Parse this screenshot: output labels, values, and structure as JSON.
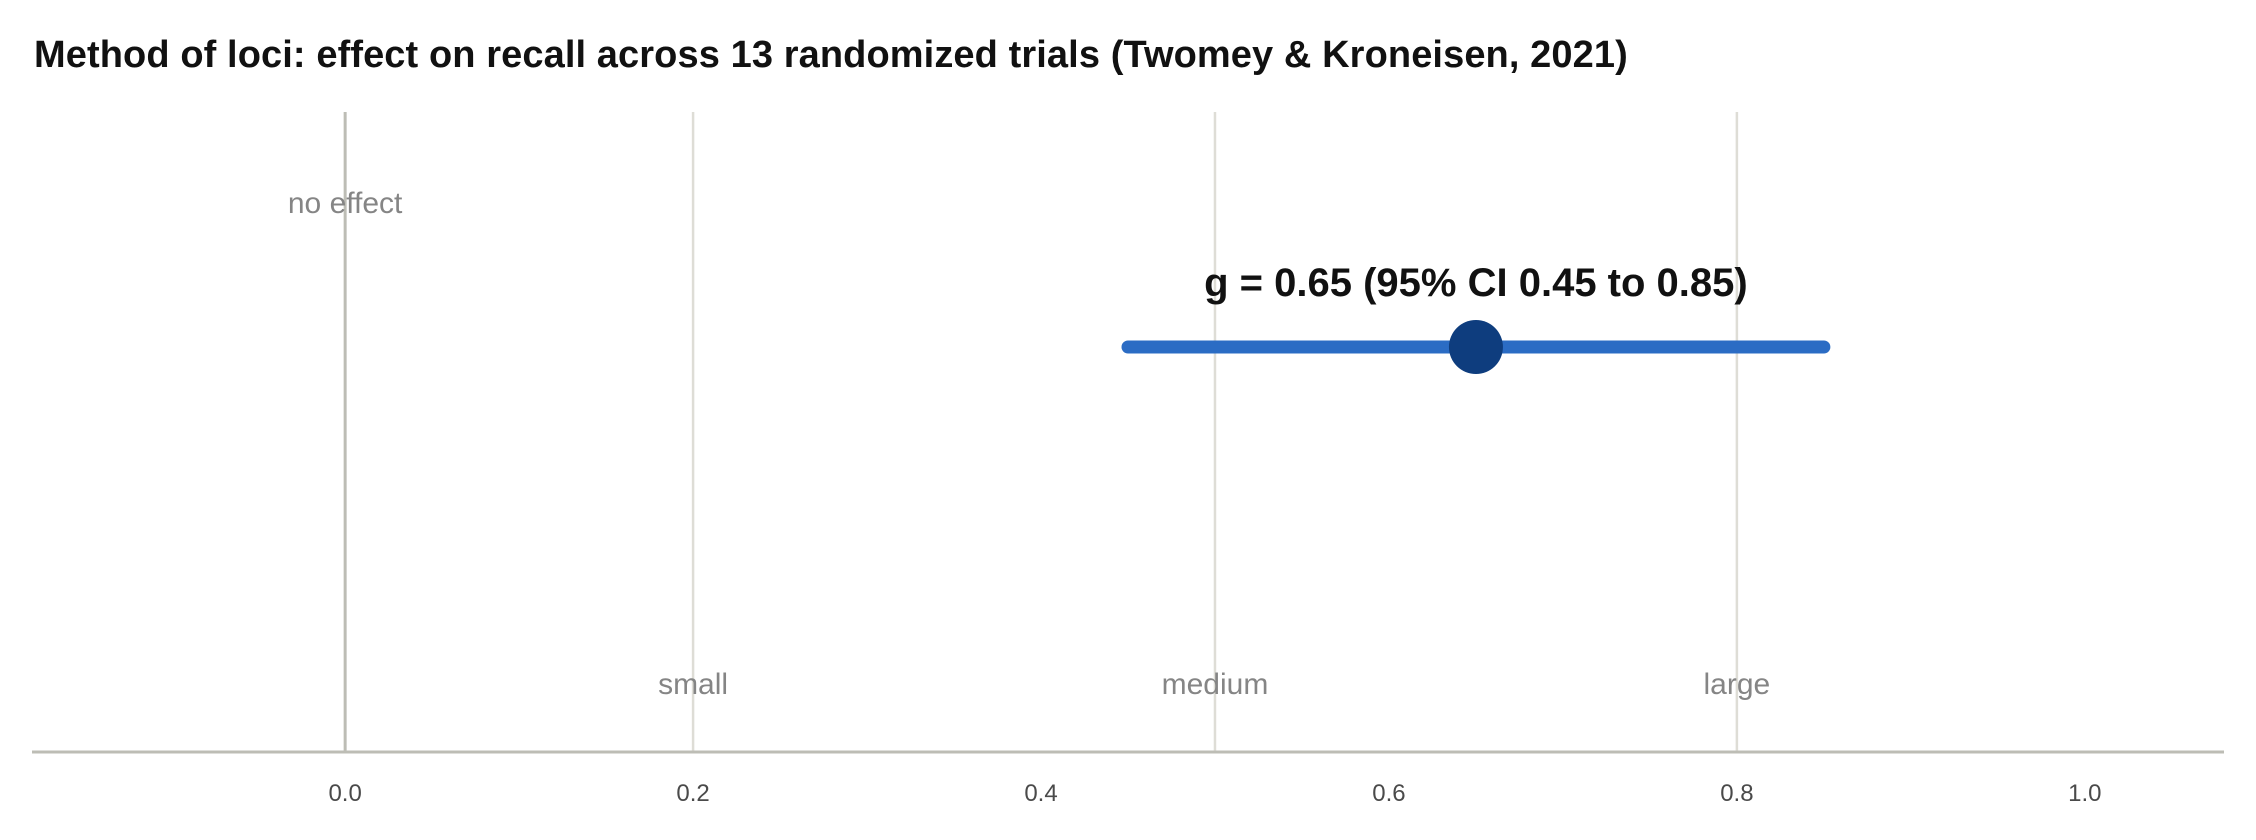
{
  "chart_data": {
    "type": "scatter",
    "title": "Method of loci: effect on recall across 13 randomized trials (Twomey & Kroneisen, 2021)",
    "xlabel": "",
    "ylabel": "",
    "xlim": [
      -0.18,
      1.08
    ],
    "xticks": [
      0.0,
      0.2,
      0.4,
      0.6,
      0.8,
      1.0
    ],
    "xtick_labels": [
      "0.0",
      "0.2",
      "0.4",
      "0.6",
      "0.8",
      "1.0"
    ],
    "grid": true,
    "reference_lines": [
      {
        "x": 0.0,
        "label": "no effect",
        "label_position": "top"
      },
      {
        "x": 0.2,
        "label": "small",
        "label_position": "bottom"
      },
      {
        "x": 0.5,
        "label": "medium",
        "label_position": "bottom"
      },
      {
        "x": 0.8,
        "label": "large",
        "label_position": "bottom"
      }
    ],
    "estimate": {
      "g": 0.65,
      "ci_low": 0.45,
      "ci_high": 0.85,
      "label": "g = 0.65  (95% CI 0.45 to 0.85)"
    },
    "colors": {
      "ci_line": "#2b6cc4",
      "point": "#0e3d7e",
      "zero_line": "#bdbdb5",
      "ref_lines": "#deddd6",
      "axis": "#bdbdb5"
    }
  }
}
